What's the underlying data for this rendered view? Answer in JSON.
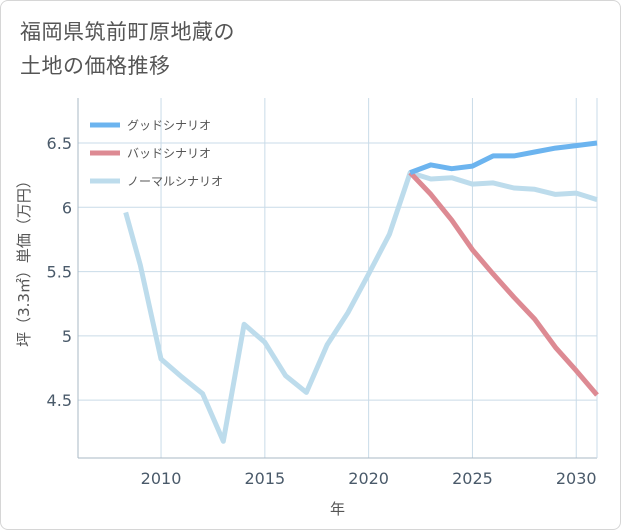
{
  "title_lines": [
    "福岡県筑前町原地蔵の",
    "土地の価格推移"
  ],
  "chart_data": {
    "type": "line",
    "title": "福岡県筑前町原地蔵の土地の価格推移",
    "xlabel": "年",
    "ylabel": "坪（3.3㎡）単価（万円）",
    "xlim": [
      2006,
      2031
    ],
    "ylim": [
      4.05,
      6.85
    ],
    "xticks": [
      2010,
      2015,
      2020,
      2025,
      2030
    ],
    "yticks": [
      4.5,
      5,
      5.5,
      6,
      6.5
    ],
    "ytick_labels": [
      "4.5",
      "5",
      "5.5",
      "6",
      "6.5"
    ],
    "grid": true,
    "legend_position": "top-left",
    "series": [
      {
        "name": "グッドシナリオ",
        "color": "#6cb4ef",
        "x": [
          2022,
          2023,
          2024,
          2025,
          2026,
          2027,
          2028,
          2029,
          2030,
          2031
        ],
        "y": [
          6.27,
          6.33,
          6.3,
          6.32,
          6.4,
          6.4,
          6.43,
          6.46,
          6.48,
          6.5
        ]
      },
      {
        "name": "バッドシナリオ",
        "color": "#dd8a93",
        "x": [
          2022,
          2023,
          2024,
          2025,
          2026,
          2027,
          2028,
          2029,
          2030,
          2031
        ],
        "y": [
          6.27,
          6.1,
          5.9,
          5.67,
          5.48,
          5.3,
          5.13,
          4.91,
          4.73,
          4.54
        ]
      },
      {
        "name": "ノーマルシナリオ",
        "color": "#bddcec",
        "x": [
          2008.3,
          2009,
          2010,
          2011,
          2012,
          2013,
          2014,
          2015,
          2016,
          2017,
          2018,
          2019,
          2020,
          2021,
          2022,
          2023,
          2024,
          2025,
          2026,
          2027,
          2028,
          2029,
          2030,
          2031
        ],
        "y": [
          5.96,
          5.55,
          4.82,
          4.68,
          4.55,
          4.18,
          5.09,
          4.95,
          4.69,
          4.56,
          4.93,
          5.18,
          5.48,
          5.79,
          6.27,
          6.22,
          6.23,
          6.18,
          6.19,
          6.15,
          6.14,
          6.1,
          6.11,
          6.06
        ]
      }
    ]
  }
}
